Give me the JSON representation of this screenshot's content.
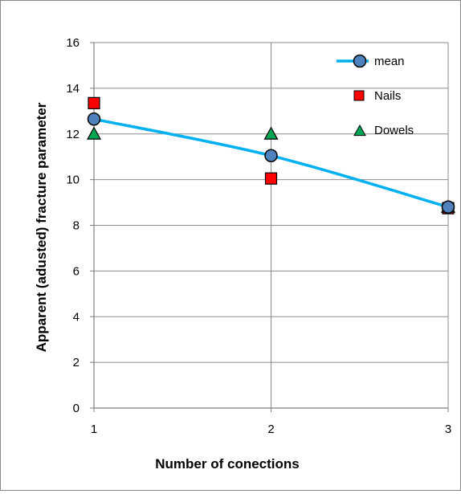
{
  "chart_data": {
    "type": "line",
    "title": "",
    "xlabel": "Number of conections",
    "ylabel": "Apparent (adusted) fracture parameter",
    "x_ticks": [
      1,
      2,
      3
    ],
    "y_ticks": [
      0,
      2,
      4,
      6,
      8,
      10,
      12,
      14,
      16
    ],
    "xlim": [
      1,
      3
    ],
    "ylim": [
      0,
      16
    ],
    "grid": "vertical and horizontal gridlines",
    "legend_position": "top-right",
    "series": [
      {
        "name": "mean",
        "style": "line-with-circle-markers",
        "color": "#00B0F0",
        "marker_color": "#4F81BD",
        "x": [
          1,
          2,
          3
        ],
        "y": [
          12.65,
          11.05,
          8.8
        ]
      },
      {
        "name": "Nails",
        "style": "square-markers",
        "marker_color": "#FF0000",
        "x": [
          1,
          2,
          3
        ],
        "y": [
          13.35,
          10.05,
          8.75
        ]
      },
      {
        "name": "Dowels",
        "style": "triangle-markers",
        "marker_color": "#00A651",
        "x": [
          1,
          2,
          3
        ],
        "y": [
          12.0,
          12.0,
          8.8
        ]
      }
    ]
  }
}
